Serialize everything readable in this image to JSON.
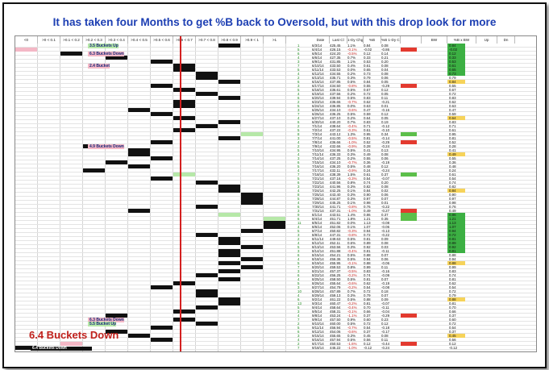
{
  "title": "It has taken four Months to get %B back to Oversold, but with this drop look for more",
  "bucket_headers": [
    "<0",
    ">0 < 0.1",
    ">0.1 < 0.2",
    ">0.2 < 0.3",
    ">0.3 < 0.4",
    ">0.4 < 0.5",
    ">0.5 < 0.6",
    ">0.6 < 0.7",
    ">0.7 < 0.8",
    ">0.8 < 0.9",
    ">0.9 < 1",
    ">1"
  ],
  "data_headers": [
    "Date",
    "Last Cl",
    "1-Dy Chg",
    "%B",
    "%B 1-Dy Ch",
    "",
    "BW",
    "%B x BW",
    "Up",
    "Dn"
  ],
  "annotations": [
    {
      "text": "3.5 Buckets Up",
      "row": 0
    },
    {
      "text": "6.3 Buckets Down",
      "row": 2
    },
    {
      "text": "2.4 Bucket",
      "row": 5
    },
    {
      "text": "4.9 Buckets Down",
      "row": 25
    },
    {
      "text": "6.3 Buckets Down",
      "row": 68
    },
    {
      "text": "5.5 Bucket Up",
      "row": 69
    }
  ],
  "callout": "6.4 Buckets Down",
  "callout_small": "6.4 Buckets Down",
  "colors": {
    "title": "#1d3fb3",
    "accent_red": "#d32020",
    "green": "#2ca02c",
    "pink": "#f4b8c6",
    "light_green": "#b6e8a8"
  },
  "rows": [
    {
      "n": "1",
      "date": "6/3/14",
      "last": "425.45",
      "chg": "1.1%",
      "pb": "0.84",
      "pbc": "0.08"
    },
    {
      "n": "5",
      "date": "6/4/14",
      "last": "426.15",
      "chg": "-0.1%",
      "pb": "-0.02",
      "pbc": "-0.86"
    },
    {
      "n": "6",
      "date": "6/5/14",
      "last": "424.20",
      "chg": "-0.5%",
      "pb": "0.12",
      "pbc": "0.14"
    },
    {
      "n": "4",
      "date": "6/6/14",
      "last": "427.35",
      "chg": "0.7%",
      "pb": "0.33",
      "pbc": "0.21"
    },
    {
      "n": "3",
      "date": "6/9/14",
      "last": "431.85",
      "chg": "1.1%",
      "pb": "0.53",
      "pbc": "0.20"
    },
    {
      "n": "7",
      "date": "6/10/14",
      "last": "433.50",
      "chg": "0.4%",
      "pb": "0.61",
      "pbc": "0.08"
    },
    {
      "n": "5",
      "date": "6/11/14",
      "last": "433.53",
      "chg": "0.0%",
      "pb": "0.65",
      "pbc": "0.04"
    },
    {
      "n": "4",
      "date": "6/12/14",
      "last": "434.55",
      "chg": "0.2%",
      "pb": "0.73",
      "pbc": "0.08"
    },
    {
      "n": "2",
      "date": "6/13/14",
      "last": "435.71",
      "chg": "0.3%",
      "pb": "0.79",
      "pbc": "0.06"
    },
    {
      "n": "6",
      "date": "6/16/14",
      "last": "437.85",
      "chg": "0.5%",
      "pb": "0.84",
      "pbc": "0.05"
    },
    {
      "n": "3",
      "date": "6/17/14",
      "last": "434.50",
      "chg": "-0.8%",
      "pb": "0.55",
      "pbc": "-0.29"
    },
    {
      "n": "5",
      "date": "6/18/14",
      "last": "436.61",
      "chg": "0.5%",
      "pb": "0.67",
      "pbc": "0.12"
    },
    {
      "n": "4",
      "date": "6/19/14",
      "last": "437.56",
      "chg": "0.2%",
      "pb": "0.72",
      "pbc": "0.05"
    },
    {
      "n": "6",
      "date": "6/20/14",
      "last": "439.94",
      "chg": "0.5%",
      "pb": "0.83",
      "pbc": "0.11"
    },
    {
      "n": "2",
      "date": "6/23/14",
      "last": "436.65",
      "chg": "-0.7%",
      "pb": "0.62",
      "pbc": "-0.21"
    },
    {
      "n": "5",
      "date": "6/24/14",
      "last": "436.85",
      "chg": "0.0%",
      "pb": "0.63",
      "pbc": "0.01"
    },
    {
      "n": "3",
      "date": "6/25/14",
      "last": "434.10",
      "chg": "-0.6%",
      "pb": "0.47",
      "pbc": "-0.16"
    },
    {
      "n": "7",
      "date": "6/26/14",
      "last": "436.25",
      "chg": "0.5%",
      "pb": "0.59",
      "pbc": "0.12"
    },
    {
      "n": "4",
      "date": "6/27/14",
      "last": "437.10",
      "chg": "0.2%",
      "pb": "0.64",
      "pbc": "0.05"
    },
    {
      "n": "6",
      "date": "6/30/14",
      "last": "440.20",
      "chg": "0.7%",
      "pb": "0.83",
      "pbc": "0.19"
    },
    {
      "n": "2",
      "date": "7/1/14",
      "last": "438.64",
      "chg": "-0.4%",
      "pb": "0.71",
      "pbc": "-0.12"
    },
    {
      "n": "5",
      "date": "7/2/14",
      "last": "437.22",
      "chg": "-0.3%",
      "pb": "0.61",
      "pbc": "-0.10"
    },
    {
      "n": "8",
      "date": "7/3/14",
      "last": "443.12",
      "chg": "1.3%",
      "pb": "0.95",
      "pbc": "0.34"
    },
    {
      "n": "3",
      "date": "7/7/14",
      "last": "441.00",
      "chg": "-0.5%",
      "pb": "0.81",
      "pbc": "-0.14"
    },
    {
      "n": "4",
      "date": "7/8/14",
      "last": "436.66",
      "chg": "-1.0%",
      "pb": "0.52",
      "pbc": "-0.29"
    },
    {
      "n": "2",
      "date": "7/9/14",
      "last": "432.66",
      "chg": "-0.9%",
      "pb": "0.28",
      "pbc": "-0.24"
    },
    {
      "n": "5",
      "date": "7/10/14",
      "last": "434.95",
      "chg": "0.5%",
      "pb": "0.41",
      "pbc": "0.13"
    },
    {
      "n": "4",
      "date": "7/11/14",
      "last": "436.33",
      "chg": "0.3%",
      "pb": "0.49",
      "pbc": "0.08"
    },
    {
      "n": "3",
      "date": "7/14/14",
      "last": "437.25",
      "chg": "0.2%",
      "pb": "0.55",
      "pbc": "0.06"
    },
    {
      "n": "6",
      "date": "7/15/14",
      "last": "434.10",
      "chg": "-0.7%",
      "pb": "0.36",
      "pbc": "-0.19"
    },
    {
      "n": "5",
      "date": "7/16/14",
      "last": "436.20",
      "chg": "0.5%",
      "pb": "0.48",
      "pbc": "0.12"
    },
    {
      "n": "4",
      "date": "7/17/14",
      "last": "432.11",
      "chg": "-0.9%",
      "pb": "0.24",
      "pbc": "-0.24"
    },
    {
      "n": "7",
      "date": "7/18/14",
      "last": "438.39",
      "chg": "1.5%",
      "pb": "0.61",
      "pbc": "0.37"
    },
    {
      "n": "5",
      "date": "7/21/14",
      "last": "437.16",
      "chg": "-0.3%",
      "pb": "0.54",
      "pbc": "-0.07"
    },
    {
      "n": "6",
      "date": "7/22/14",
      "last": "440.56",
      "chg": "0.8%",
      "pb": "0.74",
      "pbc": "0.20"
    },
    {
      "n": "3",
      "date": "7/23/14",
      "last": "441.96",
      "chg": "0.3%",
      "pb": "0.82",
      "pbc": "0.08"
    },
    {
      "n": "4",
      "date": "7/24/14",
      "last": "442.25",
      "chg": "0.1%",
      "pb": "0.84",
      "pbc": "0.02"
    },
    {
      "n": "8",
      "date": "7/25/14",
      "last": "443.40",
      "chg": "0.3%",
      "pb": "0.90",
      "pbc": "0.06"
    },
    {
      "n": "5",
      "date": "7/28/14",
      "last": "444.87",
      "chg": "0.3%",
      "pb": "0.97",
      "pbc": "0.07"
    },
    {
      "n": "4",
      "date": "7/29/14",
      "last": "445.25",
      "chg": "0.1%",
      "pb": "0.98",
      "pbc": "0.01"
    },
    {
      "n": "6",
      "date": "7/30/14",
      "last": "441.71",
      "chg": "-0.8%",
      "pb": "0.76",
      "pbc": "-0.22"
    },
    {
      "n": "3",
      "date": "7/31/14",
      "last": "437.31",
      "chg": "-1.0%",
      "pb": "0.49",
      "pbc": "-0.27"
    },
    {
      "n": "9",
      "date": "8/1/14",
      "last": "443.51",
      "chg": "1.4%",
      "pb": "0.86",
      "pbc": "0.37"
    },
    {
      "n": "6",
      "date": "8/4/14",
      "last": "451.71",
      "chg": "1.8%",
      "pb": "1.21",
      "pbc": "0.35"
    },
    {
      "n": "11",
      "date": "8/5/14",
      "last": "451.82",
      "chg": "0.0%",
      "pb": "1.13",
      "pbc": "-0.08"
    },
    {
      "n": "4",
      "date": "8/6/14",
      "last": "452.06",
      "chg": "0.1%",
      "pb": "1.07",
      "pbc": "-0.06"
    },
    {
      "n": "5",
      "date": "8/7/14",
      "last": "450.82",
      "chg": "-0.3%",
      "pb": "0.94",
      "pbc": "-0.13"
    },
    {
      "n": "3",
      "date": "8/8/14",
      "last": "447.31",
      "chg": "-0.8%",
      "pb": "0.72",
      "pbc": "-0.22"
    },
    {
      "n": "2",
      "date": "8/11/14",
      "last": "449.63",
      "chg": "0.5%",
      "pb": "0.81",
      "pbc": "0.09"
    },
    {
      "n": "4",
      "date": "8/12/14",
      "last": "452.11",
      "chg": "0.6%",
      "pb": "0.89",
      "pbc": "0.08"
    },
    {
      "n": "5",
      "date": "8/13/14",
      "last": "453.56",
      "chg": "0.3%",
      "pb": "0.92",
      "pbc": "0.03"
    },
    {
      "n": "3",
      "date": "8/14/14",
      "last": "451.88",
      "chg": "-0.4%",
      "pb": "0.81",
      "pbc": "-0.11"
    },
    {
      "n": "6",
      "date": "8/15/14",
      "last": "454.21",
      "chg": "0.5%",
      "pb": "0.88",
      "pbc": "0.07"
    },
    {
      "n": "4",
      "date": "8/18/14",
      "last": "456.36",
      "chg": "0.5%",
      "pb": "0.94",
      "pbc": "0.06"
    },
    {
      "n": "5",
      "date": "8/19/14",
      "last": "455.95",
      "chg": "-0.1%",
      "pb": "0.88",
      "pbc": "-0.06"
    },
    {
      "n": "7",
      "date": "8/20/14",
      "last": "459.53",
      "chg": "0.8%",
      "pb": "0.99",
      "pbc": "0.11"
    },
    {
      "n": "3",
      "date": "8/21/14",
      "last": "457.37",
      "chg": "-0.5%",
      "pb": "0.83",
      "pbc": "-0.16"
    },
    {
      "n": "6",
      "date": "8/22/14",
      "last": "456.25",
      "chg": "-0.2%",
      "pb": "0.74",
      "pbc": "-0.09"
    },
    {
      "n": "4",
      "date": "8/25/14",
      "last": "458.50",
      "chg": "0.5%",
      "pb": "0.81",
      "pbc": "0.07"
    },
    {
      "n": "5",
      "date": "8/26/14",
      "last": "455.64",
      "chg": "-0.6%",
      "pb": "0.62",
      "pbc": "-0.19"
    },
    {
      "n": "3",
      "date": "8/27/14",
      "last": "454.79",
      "chg": "-0.2%",
      "pb": "0.54",
      "pbc": "-0.08"
    },
    {
      "n": "10",
      "date": "8/28/14",
      "last": "457.89",
      "chg": "0.7%",
      "pb": "0.72",
      "pbc": "0.18"
    },
    {
      "n": "4",
      "date": "8/29/14",
      "last": "459.13",
      "chg": "0.3%",
      "pb": "0.79",
      "pbc": "0.07"
    },
    {
      "n": "6",
      "date": "9/2/14",
      "last": "461.22",
      "chg": "0.5%",
      "pb": "0.88",
      "pbc": "0.09"
    },
    {
      "n": "13",
      "date": "9/3/14",
      "last": "460.47",
      "chg": "-0.2%",
      "pb": "0.81",
      "pbc": "-0.07"
    },
    {
      "n": "5",
      "date": "9/4/14",
      "last": "458.64",
      "chg": "-0.4%",
      "pb": "0.70",
      "pbc": "-0.11"
    },
    {
      "n": "3",
      "date": "9/5/14",
      "last": "458.31",
      "chg": "-0.1%",
      "pb": "0.66",
      "pbc": "-0.04"
    },
    {
      "n": "4",
      "date": "9/8/14",
      "last": "453.24",
      "chg": "-1.1%",
      "pb": "0.37",
      "pbc": "-0.29"
    },
    {
      "n": "7",
      "date": "9/9/14",
      "last": "457.50",
      "chg": "0.9%",
      "pb": "0.60",
      "pbc": "0.23"
    },
    {
      "n": "2",
      "date": "9/10/14",
      "last": "460.00",
      "chg": "0.5%",
      "pb": "0.72",
      "pbc": "0.12"
    },
    {
      "n": "5",
      "date": "9/11/14",
      "last": "456.94",
      "chg": "-0.7%",
      "pb": "0.54",
      "pbc": "-0.18"
    },
    {
      "n": "6",
      "date": "9/12/14",
      "last": "454.06",
      "chg": "-0.6%",
      "pb": "0.37",
      "pbc": "-0.17"
    },
    {
      "n": "3",
      "date": "9/15/14",
      "last": "455.65",
      "chg": "0.3%",
      "pb": "0.45",
      "pbc": "0.08"
    },
    {
      "n": "4",
      "date": "9/16/14",
      "last": "457.94",
      "chg": "0.5%",
      "pb": "0.56",
      "pbc": "0.11"
    },
    {
      "n": "2",
      "date": "9/17/14",
      "last": "450.53",
      "chg": "-1.6%",
      "pb": "0.12",
      "pbc": "-0.44"
    },
    {
      "n": "7",
      "date": "9/18/14",
      "last": "446.22",
      "chg": "-1.0%",
      "pb": "-0.12",
      "pbc": "-0.24"
    }
  ]
}
